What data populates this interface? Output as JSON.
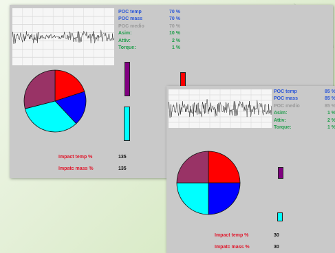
{
  "colors": {
    "panel": "#c9c9c9",
    "metric_label_blue": "#2a56d8",
    "metric_label_grey": "#9a9a9a",
    "metric_label_green": "#1f9d4a",
    "impact_label_red": "#e0182c",
    "pie_red": "#ff0000",
    "pie_blue": "#0000ff",
    "pie_cyan": "#00ffff",
    "pie_maroon": "#993366",
    "bar_purple": "#800080",
    "bar_red": "#ff0000",
    "bar_cyan": "#00ffff"
  },
  "panels": [
    {
      "metrics": [
        {
          "label": "POC temp",
          "value": "70  %",
          "style": "blue"
        },
        {
          "label": "POC mass",
          "value": "70  %",
          "style": "blue"
        },
        {
          "label": "POC medio",
          "value": "70  %",
          "style": "grey"
        },
        {
          "label": "Asim:",
          "value": "10  %",
          "style": "green"
        },
        {
          "label": "Attiv:",
          "value": "2  %",
          "style": "green"
        },
        {
          "label": "Torque:",
          "value": "1  %",
          "style": "green"
        }
      ],
      "impacts": [
        {
          "label": "Impact temp %",
          "value": "135"
        },
        {
          "label": "Impatc mass %",
          "value": "135"
        }
      ],
      "pie": [
        {
          "name": "red",
          "fraction": 0.2,
          "color": "#ff0000"
        },
        {
          "name": "blue",
          "fraction": 0.18,
          "color": "#0000ff"
        },
        {
          "name": "cyan",
          "fraction": 0.33,
          "color": "#00ffff"
        },
        {
          "name": "maroon",
          "fraction": 0.29,
          "color": "#993366"
        }
      ]
    },
    {
      "metrics": [
        {
          "label": "POC temp",
          "value": "85  %",
          "style": "blue"
        },
        {
          "label": "POC mass",
          "value": "85  %",
          "style": "blue"
        },
        {
          "label": "POC medio",
          "value": "85  %",
          "style": "grey"
        },
        {
          "label": "Asim:",
          "value": "1  %",
          "style": "green"
        },
        {
          "label": "Attiv:",
          "value": "2  %",
          "style": "green"
        },
        {
          "label": "Torque:",
          "value": "1  %",
          "style": "green"
        }
      ],
      "impacts": [
        {
          "label": "Impact temp %",
          "value": "30"
        },
        {
          "label": "Impatc mass %",
          "value": "30"
        }
      ],
      "pie": [
        {
          "name": "red",
          "fraction": 0.25,
          "color": "#ff0000"
        },
        {
          "name": "blue",
          "fraction": 0.25,
          "color": "#0000ff"
        },
        {
          "name": "cyan",
          "fraction": 0.25,
          "color": "#00ffff"
        },
        {
          "name": "maroon",
          "fraction": 0.25,
          "color": "#993366"
        }
      ]
    }
  ]
}
